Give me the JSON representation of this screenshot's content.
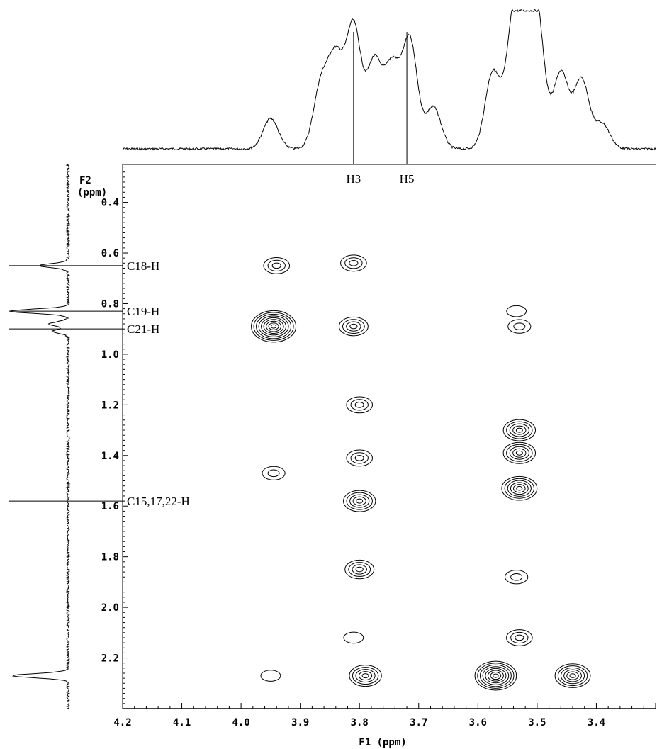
{
  "chart_data": {
    "type": "contour",
    "title": "",
    "x_axis": {
      "label": "F1 (ppm)",
      "range": [
        4.2,
        3.3
      ],
      "ticks": [
        "4.2",
        "4.1",
        "4.0",
        "3.9",
        "3.8",
        "3.7",
        "3.6",
        "3.5",
        "3.4"
      ],
      "reversed": true
    },
    "y_axis": {
      "label": "F2",
      "unit": "(ppm)",
      "range": [
        0.25,
        2.4
      ],
      "ticks": [
        "0.4",
        "0.6",
        "0.8",
        "1.0",
        "1.2",
        "1.4",
        "1.6",
        "1.8",
        "2.0",
        "2.2"
      ],
      "reversed": true
    },
    "top_projection": {
      "annotations": [
        {
          "label": "H3",
          "x": 3.81
        },
        {
          "label": "H5",
          "x": 3.72
        }
      ],
      "peaks": [
        {
          "x": 3.95,
          "h": 0.22
        },
        {
          "x": 3.865,
          "h": 0.45
        },
        {
          "x": 3.84,
          "h": 0.62
        },
        {
          "x": 3.81,
          "h": 0.88
        },
        {
          "x": 3.775,
          "h": 0.62
        },
        {
          "x": 3.745,
          "h": 0.58
        },
        {
          "x": 3.715,
          "h": 0.78
        },
        {
          "x": 3.675,
          "h": 0.3
        },
        {
          "x": 3.575,
          "h": 0.55
        },
        {
          "x": 3.54,
          "h": 0.82
        },
        {
          "x": 3.52,
          "h": 0.95
        },
        {
          "x": 3.5,
          "h": 0.86
        },
        {
          "x": 3.46,
          "h": 0.55
        },
        {
          "x": 3.425,
          "h": 0.5
        },
        {
          "x": 3.39,
          "h": 0.18
        }
      ]
    },
    "left_projection": {
      "annotations": [
        {
          "label": "C18-H",
          "y": 0.65
        },
        {
          "label": "C19-H",
          "y": 0.83
        },
        {
          "label": "C21-H",
          "y": 0.9
        },
        {
          "label": "C15,17,22-H",
          "y": 1.58
        }
      ],
      "peaks": [
        {
          "y": 0.65,
          "h": 0.45
        },
        {
          "y": 0.83,
          "h": 0.95
        },
        {
          "y": 0.88,
          "h": 0.3
        },
        {
          "y": 0.91,
          "h": 0.25
        },
        {
          "y": 2.27,
          "h": 0.9
        }
      ]
    },
    "cross_peaks": [
      {
        "x": 3.94,
        "y": 0.65,
        "levels": 3
      },
      {
        "x": 3.81,
        "y": 0.64,
        "levels": 3
      },
      {
        "x": 3.945,
        "y": 0.89,
        "levels": 9
      },
      {
        "x": 3.81,
        "y": 0.89,
        "levels": 4
      },
      {
        "x": 3.535,
        "y": 0.83,
        "levels": 1
      },
      {
        "x": 3.53,
        "y": 0.89,
        "levels": 2
      },
      {
        "x": 3.8,
        "y": 1.2,
        "levels": 3
      },
      {
        "x": 3.945,
        "y": 1.47,
        "levels": 2
      },
      {
        "x": 3.8,
        "y": 1.41,
        "levels": 3
      },
      {
        "x": 3.8,
        "y": 1.58,
        "levels": 5
      },
      {
        "x": 3.53,
        "y": 1.3,
        "levels": 5
      },
      {
        "x": 3.53,
        "y": 1.39,
        "levels": 5
      },
      {
        "x": 3.53,
        "y": 1.53,
        "levels": 6
      },
      {
        "x": 3.8,
        "y": 1.85,
        "levels": 4
      },
      {
        "x": 3.535,
        "y": 1.88,
        "levels": 2
      },
      {
        "x": 3.81,
        "y": 2.12,
        "levels": 1
      },
      {
        "x": 3.53,
        "y": 2.12,
        "levels": 3
      },
      {
        "x": 3.95,
        "y": 2.27,
        "levels": 1
      },
      {
        "x": 3.79,
        "y": 2.27,
        "levels": 5
      },
      {
        "x": 3.57,
        "y": 2.27,
        "levels": 8
      },
      {
        "x": 3.44,
        "y": 2.27,
        "levels": 6
      }
    ]
  }
}
